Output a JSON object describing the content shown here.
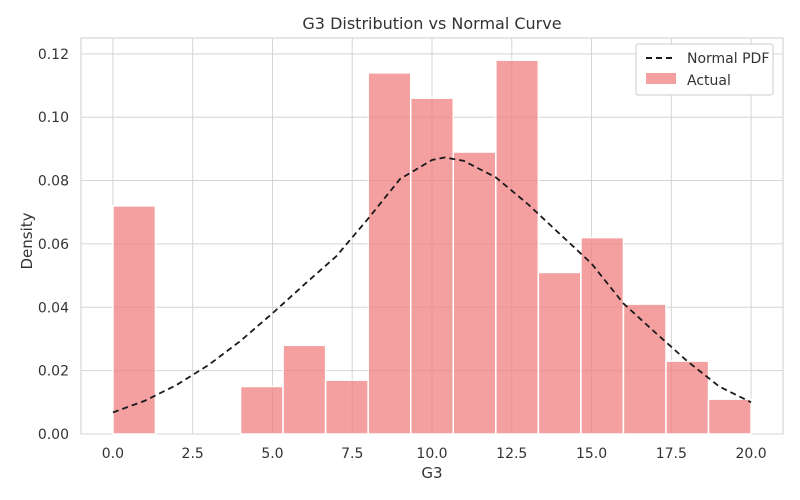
{
  "chart_data": {
    "type": "bar",
    "title": "G3 Distribution vs Normal Curve",
    "xlabel": "G3",
    "ylabel": "Density",
    "xlim": [
      -1.0,
      21.0
    ],
    "ylim": [
      0,
      0.125
    ],
    "x_ticks": [
      "0.0",
      "2.5",
      "5.0",
      "7.5",
      "10.0",
      "12.5",
      "15.0",
      "17.5",
      "20.0"
    ],
    "y_ticks": [
      "0.00",
      "0.02",
      "0.04",
      "0.06",
      "0.08",
      "0.10",
      "0.12"
    ],
    "grid": true,
    "legend_position": "top-right",
    "series": [
      {
        "name": "Normal PDF",
        "kind": "line",
        "color": "#1a1a1a",
        "x": [
          0.0,
          1.0,
          2.0,
          3.0,
          4.0,
          5.0,
          6.0,
          7.0,
          8.0,
          9.0,
          10.0,
          10.4,
          11.0,
          12.0,
          13.0,
          14.0,
          15.0,
          16.0,
          17.0,
          18.0,
          19.0,
          20.0
        ],
        "values": [
          0.0068,
          0.0105,
          0.0155,
          0.0218,
          0.0294,
          0.0381,
          0.0472,
          0.0561,
          0.068,
          0.0805,
          0.0865,
          0.0873,
          0.0862,
          0.081,
          0.0726,
          0.0632,
          0.0538,
          0.0412,
          0.032,
          0.023,
          0.015,
          0.01
        ]
      },
      {
        "name": "Actual",
        "kind": "bar",
        "color": "#f08080",
        "bins": [
          [
            0.0,
            1.333
          ],
          [
            1.333,
            2.667
          ],
          [
            2.667,
            4.0
          ],
          [
            4.0,
            5.333
          ],
          [
            5.333,
            6.667
          ],
          [
            6.667,
            8.0
          ],
          [
            8.0,
            9.333
          ],
          [
            9.333,
            10.667
          ],
          [
            10.667,
            12.0
          ],
          [
            12.0,
            13.333
          ],
          [
            13.333,
            14.667
          ],
          [
            14.667,
            16.0
          ],
          [
            16.0,
            17.333
          ],
          [
            17.333,
            18.667
          ],
          [
            18.667,
            20.0
          ]
        ],
        "values": [
          0.072,
          0.0,
          0.0,
          0.015,
          0.028,
          0.017,
          0.114,
          0.106,
          0.089,
          0.118,
          0.051,
          0.062,
          0.041,
          0.023,
          0.011
        ]
      }
    ]
  }
}
